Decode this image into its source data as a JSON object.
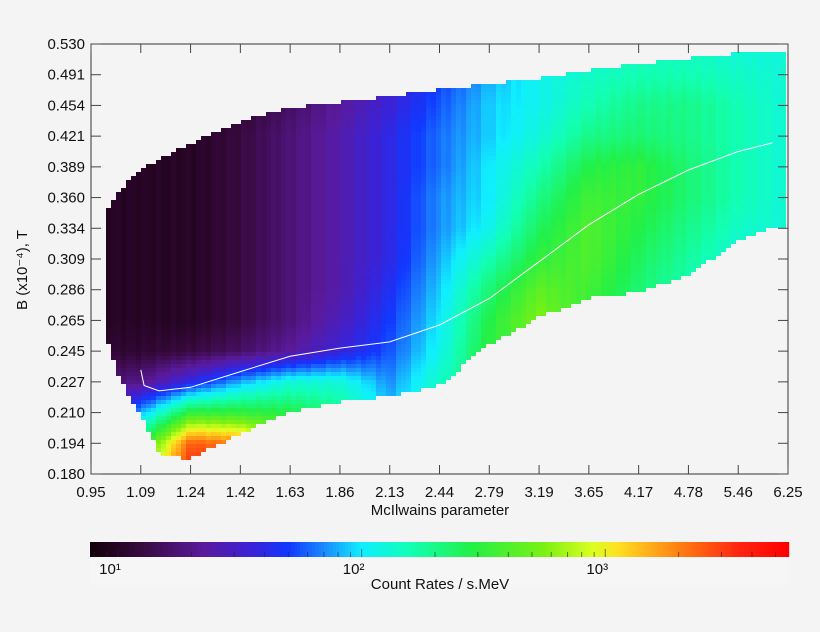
{
  "chart_data": {
    "type": "heatmap",
    "xlabel": "McIlwains parameter",
    "ylabel": "B (x10⁻⁴), T",
    "x_ticks": [
      0.95,
      1.09,
      1.24,
      1.42,
      1.63,
      1.86,
      2.13,
      2.44,
      2.79,
      3.19,
      3.65,
      4.17,
      4.78,
      5.46,
      6.25
    ],
    "x_tick_labels": [
      "0.95",
      "1.09",
      "1.24",
      "1.42",
      "1.63",
      "1.86",
      "2.13",
      "2.44",
      "2.79",
      "3.19",
      "3.65",
      "4.17",
      "4.78",
      "5.46",
      "6.25"
    ],
    "y_ticks": [
      0.18,
      0.194,
      0.21,
      0.227,
      0.245,
      0.265,
      0.286,
      0.309,
      0.334,
      0.36,
      0.389,
      0.421,
      0.454,
      0.491,
      0.53
    ],
    "y_tick_labels": [
      "0.180",
      "0.194",
      "0.210",
      "0.227",
      "0.245",
      "0.265",
      "0.286",
      "0.309",
      "0.334",
      "0.360",
      "0.389",
      "0.421",
      "0.454",
      "0.491",
      "0.530"
    ],
    "xlim": [
      0.95,
      6.25
    ],
    "ylim": [
      0.18,
      0.53
    ],
    "value_quantity": "log10 count rate",
    "grid_L": [
      0.95,
      1.09,
      1.24,
      1.42,
      1.63,
      1.86,
      2.13,
      2.44,
      2.79,
      3.19,
      3.65,
      4.17,
      4.78,
      5.46,
      6.25
    ],
    "grid_B_top_to_bottom": [
      0.53,
      0.491,
      0.454,
      0.421,
      0.389,
      0.36,
      0.334,
      0.309,
      0.286,
      0.265,
      0.245,
      0.227,
      0.21,
      0.194,
      0.18
    ],
    "grid_log10_values": [
      [
        1.0,
        1.0,
        1.0,
        1.0,
        1.1,
        1.2,
        1.4,
        1.6,
        1.8,
        2.0,
        2.1,
        2.15,
        2.15,
        2.1,
        2.1
      ],
      [
        1.0,
        1.0,
        1.0,
        1.05,
        1.15,
        1.3,
        1.5,
        1.7,
        1.9,
        2.05,
        2.15,
        2.2,
        2.2,
        2.15,
        2.1
      ],
      [
        1.0,
        1.0,
        1.0,
        1.05,
        1.2,
        1.35,
        1.55,
        1.75,
        1.95,
        2.05,
        2.2,
        2.3,
        2.3,
        2.2,
        2.1
      ],
      [
        1.0,
        1.0,
        1.0,
        1.1,
        1.25,
        1.4,
        1.6,
        1.8,
        1.95,
        2.1,
        2.3,
        2.35,
        2.3,
        2.2,
        2.1
      ],
      [
        1.0,
        1.0,
        1.0,
        1.1,
        1.25,
        1.4,
        1.6,
        1.8,
        2.0,
        2.2,
        2.45,
        2.5,
        2.35,
        2.2,
        2.1
      ],
      [
        1.0,
        1.0,
        1.0,
        1.1,
        1.25,
        1.4,
        1.6,
        1.85,
        2.0,
        2.3,
        2.55,
        2.5,
        2.35,
        2.2,
        2.1
      ],
      [
        1.0,
        1.0,
        1.0,
        1.1,
        1.25,
        1.4,
        1.6,
        1.85,
        2.05,
        2.4,
        2.6,
        2.45,
        2.3,
        2.15,
        2.1
      ],
      [
        1.0,
        1.0,
        1.0,
        1.1,
        1.25,
        1.4,
        1.6,
        1.9,
        2.2,
        2.5,
        2.6,
        2.4,
        2.25,
        2.1,
        2.1
      ],
      [
        1.0,
        1.0,
        1.0,
        1.1,
        1.25,
        1.4,
        1.65,
        1.95,
        2.35,
        2.65,
        2.55,
        2.35,
        2.2,
        2.1,
        2.1
      ],
      [
        1.0,
        1.0,
        1.0,
        1.1,
        1.25,
        1.45,
        1.7,
        2.0,
        2.45,
        2.75,
        2.5,
        2.3,
        2.2,
        2.1,
        2.1
      ],
      [
        1.05,
        1.05,
        1.1,
        1.2,
        1.35,
        1.55,
        1.75,
        2.05,
        2.5,
        2.6,
        2.4,
        2.3,
        2.2,
        2.1,
        2.1
      ],
      [
        1.2,
        1.3,
        1.6,
        1.9,
        2.1,
        2.1,
        1.85,
        2.15,
        2.4,
        2.4,
        2.3,
        2.2,
        2.1,
        2.1,
        2.1
      ],
      [
        1.4,
        1.9,
        2.5,
        2.5,
        2.45,
        2.3,
        1.95,
        2.2,
        2.3,
        2.3,
        2.2,
        2.1,
        2.1,
        2.1,
        2.1
      ],
      [
        1.6,
        2.4,
        3.4,
        3.3,
        2.8,
        2.4,
        2.0,
        2.2,
        2.3,
        2.2,
        2.1,
        2.1,
        2.1,
        2.1,
        2.1
      ],
      [
        1.8,
        2.7,
        3.6,
        3.5,
        2.9,
        2.4,
        2.0,
        2.2,
        2.2,
        2.2,
        2.1,
        2.1,
        2.1,
        2.1,
        2.1
      ]
    ],
    "coverage": [
      {
        "L": 1.0,
        "B_min": 0.249,
        "B_max": 0.35
      },
      {
        "L": 1.03,
        "B_min": 0.229,
        "B_max": 0.367
      },
      {
        "L": 1.09,
        "B_min": 0.208,
        "B_max": 0.386
      },
      {
        "L": 1.15,
        "B_min": 0.188,
        "B_max": 0.398
      },
      {
        "L": 1.24,
        "B_min": 0.187,
        "B_max": 0.413
      },
      {
        "L": 1.42,
        "B_min": 0.199,
        "B_max": 0.437
      },
      {
        "L": 1.63,
        "B_min": 0.21,
        "B_max": 0.451
      },
      {
        "L": 1.86,
        "B_min": 0.216,
        "B_max": 0.458
      },
      {
        "L": 2.13,
        "B_min": 0.219,
        "B_max": 0.465
      },
      {
        "L": 2.44,
        "B_min": 0.225,
        "B_max": 0.473
      },
      {
        "L": 2.79,
        "B_min": 0.249,
        "B_max": 0.48
      },
      {
        "L": 3.19,
        "B_min": 0.267,
        "B_max": 0.487
      },
      {
        "L": 3.65,
        "B_min": 0.28,
        "B_max": 0.497
      },
      {
        "L": 4.17,
        "B_min": 0.284,
        "B_max": 0.505
      },
      {
        "L": 4.78,
        "B_min": 0.297,
        "B_max": 0.512
      },
      {
        "L": 5.46,
        "B_min": 0.323,
        "B_max": 0.518
      },
      {
        "L": 6.0,
        "B_min": 0.334,
        "B_max": 0.52
      }
    ],
    "overlay_curve": {
      "color": "#ffffff",
      "L": [
        1.09,
        1.1,
        1.145,
        1.24,
        1.42,
        1.63,
        1.86,
        2.13,
        2.44,
        2.79,
        3.19,
        3.65,
        4.17,
        4.78,
        5.46,
        6.0
      ],
      "B": [
        0.234,
        0.225,
        0.222,
        0.224,
        0.233,
        0.242,
        0.247,
        0.251,
        0.262,
        0.28,
        0.307,
        0.337,
        0.363,
        0.386,
        0.405,
        0.414
      ]
    },
    "colorbar": {
      "title": "Count Rates / s.MeV",
      "scale": "log",
      "range_log10": [
        0.885,
        3.75
      ],
      "major_ticks_log10": [
        1,
        2,
        3
      ],
      "major_tick_labels": [
        "10¹",
        "10²",
        "10³"
      ],
      "colormap_stops": [
        {
          "v": 0.885,
          "c": "#120008"
        },
        {
          "v": 1.1,
          "c": "#38093f"
        },
        {
          "v": 1.35,
          "c": "#5a1a9c"
        },
        {
          "v": 1.55,
          "c": "#3a22d8"
        },
        {
          "v": 1.7,
          "c": "#1238ff"
        },
        {
          "v": 1.85,
          "c": "#1a8cff"
        },
        {
          "v": 2.0,
          "c": "#10eeff"
        },
        {
          "v": 2.2,
          "c": "#12ffb4"
        },
        {
          "v": 2.45,
          "c": "#22f048"
        },
        {
          "v": 2.75,
          "c": "#7cf012"
        },
        {
          "v": 2.95,
          "c": "#dcff20"
        },
        {
          "v": 3.05,
          "c": "#ffe020"
        },
        {
          "v": 3.3,
          "c": "#ff8012"
        },
        {
          "v": 3.55,
          "c": "#ff2410"
        },
        {
          "v": 3.75,
          "c": "#ff0000"
        }
      ]
    }
  }
}
